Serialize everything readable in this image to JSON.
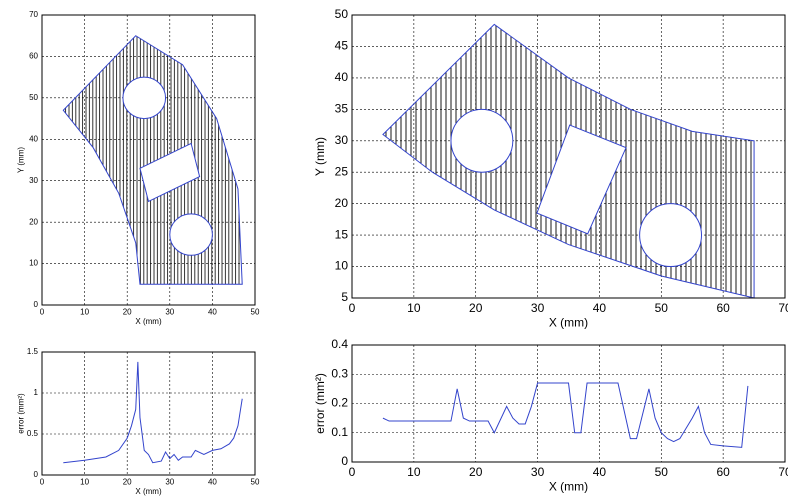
{
  "chart_data": [
    {
      "type": "shape",
      "xlabel": "X (mm)",
      "ylabel": "Y (mm)",
      "xlim": [
        0,
        50
      ],
      "ylim": [
        0,
        70
      ],
      "xticks": [
        0,
        10,
        20,
        30,
        40,
        50
      ],
      "yticks": [
        0,
        10,
        20,
        30,
        40,
        50,
        60,
        70
      ],
      "grid": true,
      "color": "#3344cc",
      "outline": {
        "x": [
          5,
          22,
          33,
          41,
          46,
          47,
          23,
          22,
          18,
          12
        ],
        "y": [
          47,
          65,
          58,
          45,
          28,
          5,
          5,
          15,
          27,
          38
        ]
      },
      "polygon_holes": [
        {
          "x": [
            23,
            35,
            37,
            25
          ],
          "y": [
            33,
            39,
            31,
            25
          ]
        }
      ],
      "circle_holes": [
        {
          "cx": 24,
          "cy": 50,
          "r": 5
        },
        {
          "cx": 35,
          "cy": 17,
          "r": 5
        }
      ]
    },
    {
      "type": "shape",
      "xlabel": "X (mm)",
      "ylabel": "Y (mm)",
      "xlim": [
        0,
        70
      ],
      "ylim": [
        5,
        50
      ],
      "xticks": [
        0,
        10,
        20,
        30,
        40,
        50,
        60,
        70
      ],
      "yticks": [
        5,
        10,
        15,
        20,
        25,
        30,
        35,
        40,
        45,
        50
      ],
      "grid": true,
      "color": "#3344cc",
      "outline": {
        "x": [
          5,
          23,
          35,
          45,
          55,
          65,
          65,
          50,
          35,
          23,
          13
        ],
        "y": [
          31,
          48.5,
          40,
          35,
          31.5,
          30,
          5,
          8.5,
          13.5,
          19,
          25
        ]
      },
      "polygon_holes": [
        {
          "x": [
            35.2,
            44.3,
            38.1,
            29.9
          ],
          "y": [
            32.5,
            28.9,
            15.2,
            18.5
          ]
        }
      ],
      "circle_holes": [
        {
          "cx": 21,
          "cy": 30,
          "r": 5
        },
        {
          "cx": 51.5,
          "cy": 15,
          "r": 5
        }
      ]
    },
    {
      "type": "line",
      "xlabel": "X (mm)",
      "ylabel": "error (mm²)",
      "xlim": [
        0,
        50
      ],
      "ylim": [
        0,
        1.5
      ],
      "xticks": [
        0,
        10,
        20,
        30,
        40,
        50
      ],
      "yticks": [
        0,
        0.5,
        1,
        1.5
      ],
      "grid": true,
      "series": [
        {
          "color": "#3344cc",
          "x": [
            5,
            10,
            15,
            18,
            20,
            21,
            22,
            22.5,
            23,
            24,
            25,
            26,
            28,
            29,
            30,
            31,
            32,
            33,
            35,
            36,
            38,
            40,
            42,
            44,
            45,
            46,
            47
          ],
          "values": [
            0.15,
            0.18,
            0.22,
            0.3,
            0.45,
            0.6,
            0.8,
            1.38,
            0.7,
            0.3,
            0.25,
            0.15,
            0.17,
            0.28,
            0.2,
            0.25,
            0.18,
            0.22,
            0.22,
            0.3,
            0.25,
            0.3,
            0.32,
            0.38,
            0.45,
            0.6,
            0.93
          ]
        }
      ]
    },
    {
      "type": "line",
      "xlabel": "X (mm)",
      "ylabel": "error (mm²)",
      "xlim": [
        0,
        70
      ],
      "ylim": [
        0,
        0.4
      ],
      "xticks": [
        0,
        10,
        20,
        30,
        40,
        50,
        60,
        70
      ],
      "yticks": [
        0,
        0.1,
        0.2,
        0.3,
        0.4
      ],
      "grid": true,
      "series": [
        {
          "color": "#3344cc",
          "x": [
            5,
            6,
            10,
            16,
            17,
            18,
            19,
            22,
            23,
            25,
            26,
            27,
            28,
            29,
            30,
            35,
            36,
            37,
            38,
            43,
            45,
            46,
            48,
            49,
            50,
            51,
            52,
            53,
            55,
            56,
            57,
            58,
            60,
            63,
            64
          ],
          "values": [
            0.15,
            0.14,
            0.14,
            0.14,
            0.25,
            0.15,
            0.14,
            0.14,
            0.1,
            0.19,
            0.15,
            0.13,
            0.13,
            0.19,
            0.27,
            0.27,
            0.1,
            0.1,
            0.27,
            0.27,
            0.08,
            0.08,
            0.25,
            0.15,
            0.1,
            0.08,
            0.07,
            0.08,
            0.15,
            0.19,
            0.1,
            0.06,
            0.055,
            0.05,
            0.26
          ]
        }
      ]
    }
  ]
}
